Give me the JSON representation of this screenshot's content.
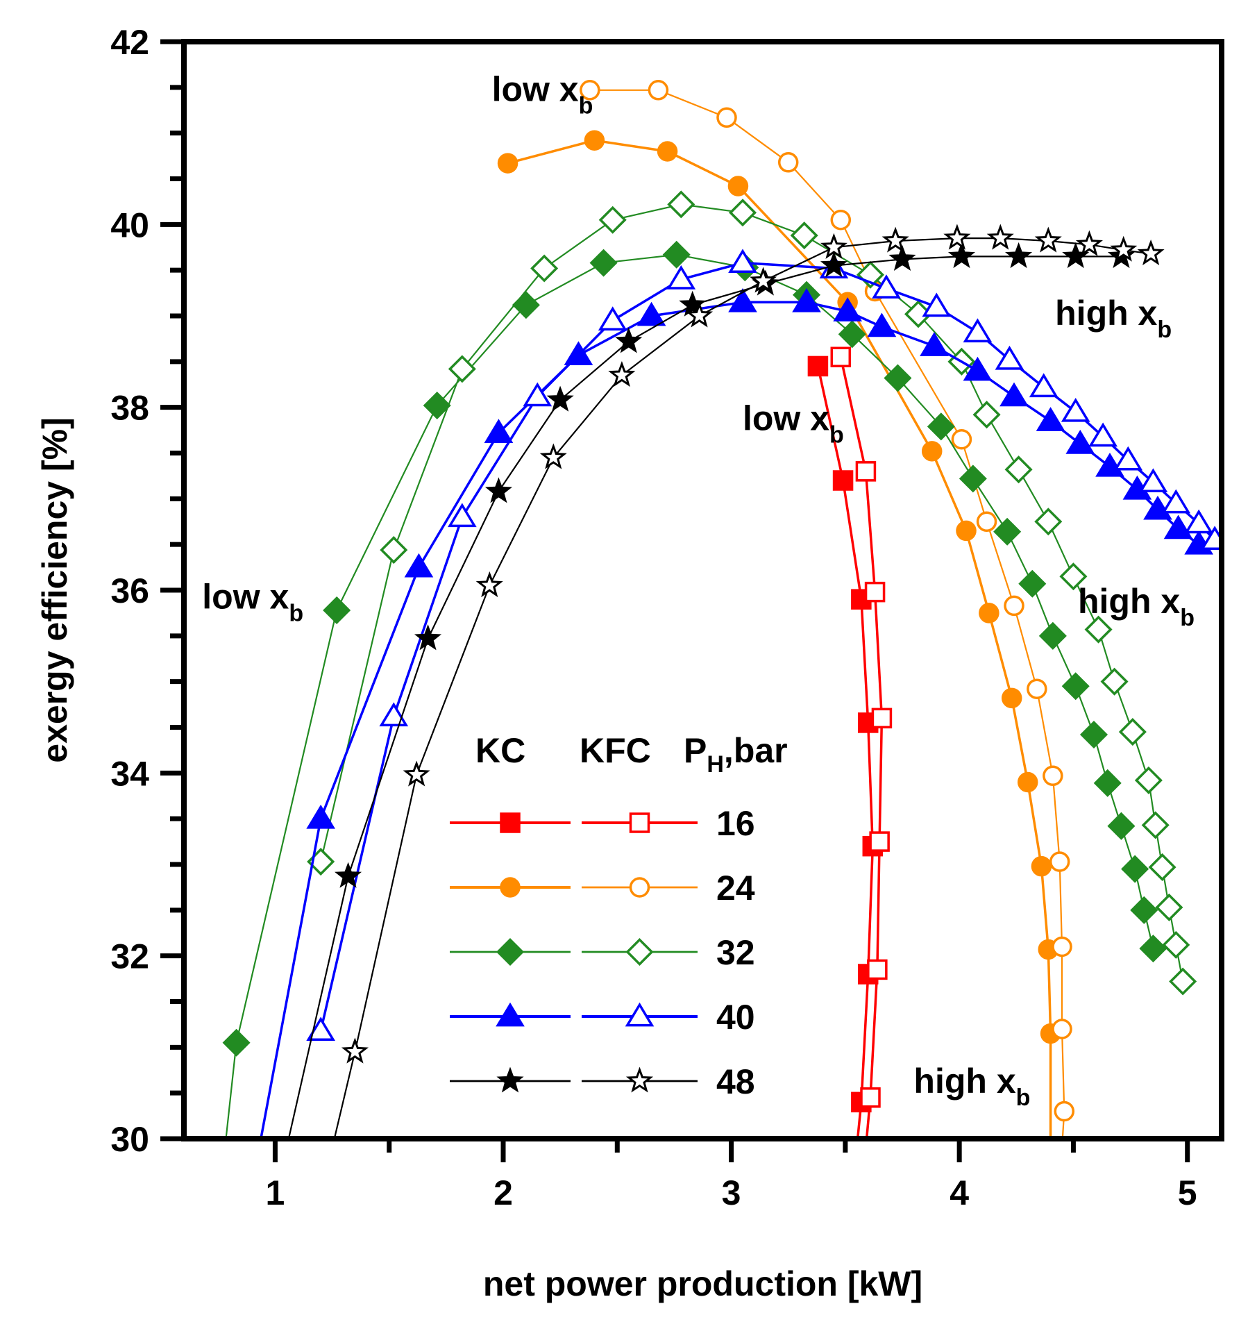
{
  "chart_data": {
    "type": "line",
    "xlabel": "net power production [kW]",
    "ylabel": "exergy efficiency [%]",
    "xlim": [
      0.6,
      5.15
    ],
    "ylim": [
      30,
      42
    ],
    "xticks": [
      1,
      2,
      3,
      4,
      5
    ],
    "yticks": [
      30,
      32,
      34,
      36,
      38,
      40,
      42
    ],
    "legend": {
      "headers": [
        "KC",
        "KFC",
        "P",
        "H",
        ",bar"
      ],
      "placement": "bottom-center"
    },
    "annotations": [
      {
        "id": "low-xb-top",
        "text": "low x",
        "sub": "b",
        "x": 1.95,
        "y": 41.35
      },
      {
        "id": "high-xb-right",
        "text": "high x",
        "sub": "b",
        "x": 4.42,
        "y": 38.9
      },
      {
        "id": "low-xb-mid",
        "text": "low x",
        "sub": "b",
        "x": 3.05,
        "y": 37.75
      },
      {
        "id": "low-xb-left",
        "text": "low x",
        "sub": "b",
        "x": 0.68,
        "y": 35.8
      },
      {
        "id": "high-xb-mid",
        "text": "high x",
        "sub": "b",
        "x": 4.52,
        "y": 35.75
      },
      {
        "id": "high-xb-bottom",
        "text": "high x",
        "sub": "b",
        "x": 3.8,
        "y": 30.5
      }
    ],
    "series": [
      {
        "name": "KC 16",
        "pressure": "16",
        "cycle": "KC",
        "color": "#ff0000",
        "marker": "square",
        "filled": true,
        "lw": 3.5,
        "x": [
          3.38,
          3.49,
          3.57,
          3.6,
          3.62,
          3.6,
          3.57,
          3.55
        ],
        "y": [
          38.45,
          37.2,
          35.9,
          34.55,
          33.2,
          31.8,
          30.4,
          29.9
        ]
      },
      {
        "name": "KFC 16",
        "pressure": "16",
        "cycle": "KFC",
        "color": "#ff0000",
        "marker": "square",
        "filled": false,
        "lw": 3.5,
        "x": [
          3.48,
          3.59,
          3.63,
          3.66,
          3.65,
          3.64,
          3.61,
          3.59
        ],
        "y": [
          38.55,
          37.3,
          35.98,
          34.6,
          33.25,
          31.85,
          30.45,
          29.9
        ]
      },
      {
        "name": "KC 24",
        "pressure": "24",
        "cycle": "KC",
        "color": "#ff8c00",
        "marker": "circle",
        "filled": true,
        "lw": 3.5,
        "x": [
          2.02,
          2.4,
          2.72,
          3.03,
          3.51,
          3.88,
          4.03,
          4.13,
          4.23,
          4.3,
          4.36,
          4.39,
          4.4,
          4.4
        ],
        "y": [
          40.67,
          40.92,
          40.8,
          40.42,
          39.15,
          37.52,
          36.65,
          35.75,
          34.82,
          33.9,
          32.98,
          32.07,
          31.15,
          29.9
        ]
      },
      {
        "name": "KFC 24",
        "pressure": "24",
        "cycle": "KFC",
        "color": "#ff8c00",
        "marker": "circle",
        "filled": false,
        "lw": 2.2,
        "x": [
          2.38,
          2.68,
          2.98,
          3.25,
          3.48,
          3.63,
          4.01,
          4.12,
          4.24,
          4.34,
          4.41,
          4.44,
          4.45,
          4.45,
          4.46,
          4.45
        ],
        "y": [
          41.47,
          41.47,
          41.17,
          40.68,
          40.05,
          39.27,
          37.65,
          36.75,
          35.83,
          34.92,
          33.97,
          33.03,
          32.1,
          31.2,
          30.3,
          29.9
        ]
      },
      {
        "name": "KC 32",
        "pressure": "32",
        "cycle": "KC",
        "color": "#228b22",
        "marker": "diamond",
        "filled": true,
        "lw": 2.2,
        "x": [
          0.78,
          0.83,
          1.27,
          1.71,
          2.1,
          2.44,
          2.76,
          3.06,
          3.33,
          3.53,
          3.73,
          3.92,
          4.06,
          4.21,
          4.32,
          4.41,
          4.51,
          4.59,
          4.65,
          4.71,
          4.77,
          4.81,
          4.85
        ],
        "y": [
          29.9,
          31.05,
          35.78,
          38.02,
          39.12,
          39.58,
          39.67,
          39.53,
          39.23,
          38.8,
          38.32,
          37.79,
          37.22,
          36.64,
          36.07,
          35.5,
          34.95,
          34.42,
          33.89,
          33.42,
          32.95,
          32.5,
          32.08
        ]
      },
      {
        "name": "KFC 32",
        "pressure": "32",
        "cycle": "KFC",
        "color": "#228b22",
        "marker": "diamond",
        "filled": false,
        "lw": 2.2,
        "x": [
          1.2,
          1.52,
          1.82,
          2.18,
          2.48,
          2.78,
          3.05,
          3.32,
          3.61,
          3.82,
          4.01,
          4.12,
          4.26,
          4.39,
          4.5,
          4.61,
          4.68,
          4.76,
          4.83,
          4.86,
          4.89,
          4.92,
          4.95,
          4.98
        ],
        "y": [
          33.03,
          36.44,
          38.42,
          39.52,
          40.05,
          40.22,
          40.13,
          39.88,
          39.45,
          39.02,
          38.5,
          37.92,
          37.32,
          36.75,
          36.15,
          35.57,
          35.0,
          34.45,
          33.92,
          33.43,
          32.97,
          32.53,
          32.12,
          31.72
        ]
      },
      {
        "name": "KC 40",
        "pressure": "40",
        "cycle": "KC",
        "color": "#0000ff",
        "marker": "triangle",
        "filled": true,
        "lw": 3.5,
        "x": [
          0.93,
          1.2,
          1.63,
          1.98,
          2.33,
          2.65,
          3.05,
          3.33,
          3.51,
          3.66,
          3.89,
          4.08,
          4.24,
          4.4,
          4.53,
          4.66,
          4.78,
          4.87,
          4.96,
          5.05
        ],
        "y": [
          29.9,
          33.5,
          36.25,
          37.72,
          38.57,
          39.0,
          39.15,
          39.15,
          39.05,
          38.88,
          38.67,
          38.4,
          38.12,
          37.85,
          37.6,
          37.35,
          37.1,
          36.88,
          36.67,
          36.5
        ]
      },
      {
        "name": "KFC 40",
        "pressure": "40",
        "cycle": "KFC",
        "color": "#0000ff",
        "marker": "triangle",
        "filled": false,
        "lw": 3.5,
        "x": [
          1.2,
          1.52,
          1.82,
          2.15,
          2.48,
          2.78,
          3.05,
          3.45,
          3.68,
          3.9,
          4.08,
          4.22,
          4.37,
          4.51,
          4.63,
          4.74,
          4.85,
          4.95,
          5.05,
          5.12
        ],
        "y": [
          31.18,
          34.62,
          36.8,
          38.12,
          38.95,
          39.4,
          39.58,
          39.52,
          39.3,
          39.1,
          38.82,
          38.52,
          38.22,
          37.95,
          37.68,
          37.42,
          37.18,
          36.95,
          36.73,
          36.55
        ]
      },
      {
        "name": "KC 48",
        "pressure": "48",
        "cycle": "KC",
        "color": "#000000",
        "marker": "star",
        "filled": true,
        "lw": 2.2,
        "x": [
          1.05,
          1.32,
          1.67,
          1.98,
          2.25,
          2.55,
          2.83,
          3.15,
          3.45,
          3.75,
          4.01,
          4.26,
          4.51,
          4.71
        ],
        "y": [
          29.9,
          32.87,
          35.47,
          37.08,
          38.08,
          38.72,
          39.12,
          39.35,
          39.55,
          39.62,
          39.65,
          39.65,
          39.65,
          39.65
        ]
      },
      {
        "name": "KFC 48",
        "pressure": "48",
        "cycle": "KFC",
        "color": "#000000",
        "marker": "star",
        "filled": false,
        "lw": 2.2,
        "x": [
          1.25,
          1.35,
          1.62,
          1.94,
          2.22,
          2.52,
          2.86,
          3.14,
          3.45,
          3.72,
          3.99,
          4.18,
          4.39,
          4.57,
          4.72,
          4.84
        ],
        "y": [
          29.9,
          30.95,
          33.98,
          36.05,
          37.45,
          38.35,
          39.0,
          39.38,
          39.75,
          39.82,
          39.85,
          39.85,
          39.82,
          39.78,
          39.72,
          39.68
        ]
      }
    ]
  }
}
